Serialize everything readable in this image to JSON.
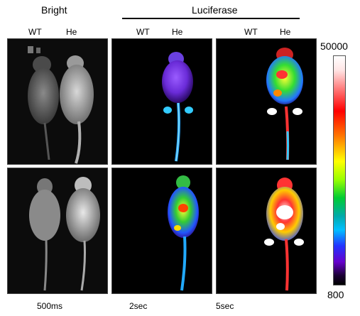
{
  "headers": {
    "bright": "Bright",
    "luciferase": "Luciferase"
  },
  "genotype_labels": {
    "col1": [
      "WT",
      "He"
    ],
    "col2": [
      "WT",
      "He"
    ],
    "col3": [
      "WT",
      "He"
    ]
  },
  "exposures": {
    "col1": "500ms",
    "col2": "2sec",
    "col3": "5sec"
  },
  "colorbar": {
    "max_label": "50000",
    "min_label": "800",
    "colors": [
      "#ffffff",
      "#ff0000",
      "#ff7700",
      "#ffff00",
      "#00cc33",
      "#00bfff",
      "#2233ff",
      "#6600cc",
      "#000000"
    ]
  }
}
